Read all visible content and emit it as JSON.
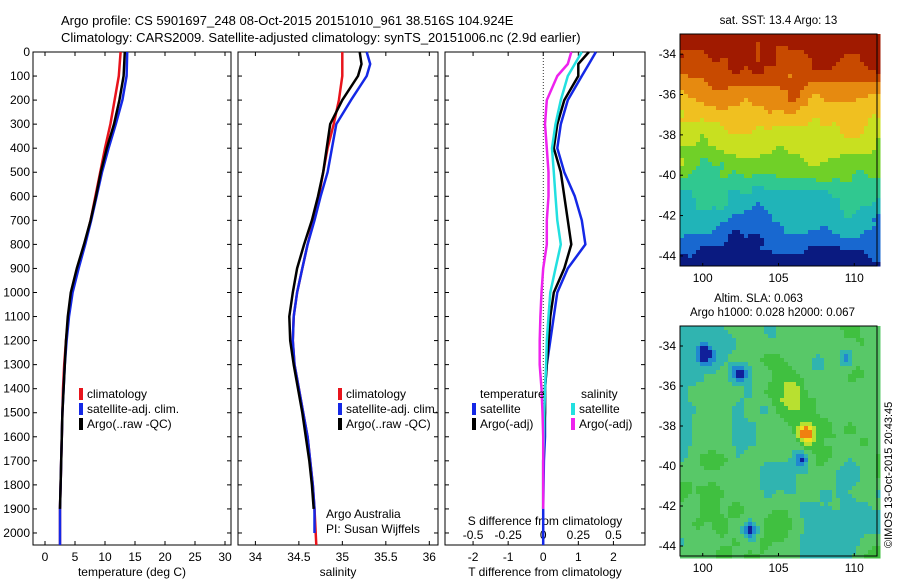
{
  "title": {
    "line1": "Argo profile: CS 5901697_248 08-Oct-2015 20151010_961 38.516S 104.924E",
    "line2": "Climatology: CARS2009. Satellite-adjusted climatology: synTS_20151006.nc (2.9d earlier)"
  },
  "colors": {
    "climatology": "#e8141c",
    "satellite": "#1428e6",
    "argo": "#000000",
    "sat_cyan": "#22e0e0",
    "argo_magenta": "#ee22ee"
  },
  "chart_data": [
    {
      "type": "line",
      "name": "temperature",
      "xlabel": "temperature (deg C)",
      "ylabel": "",
      "xlim": [
        -2,
        31
      ],
      "ylim": [
        2050,
        0
      ],
      "xticks": [
        0,
        5,
        10,
        15,
        20,
        25,
        30
      ],
      "yticks": [
        0,
        100,
        200,
        300,
        400,
        500,
        600,
        700,
        800,
        900,
        1000,
        1100,
        1200,
        1300,
        1400,
        1500,
        1600,
        1700,
        1800,
        1900,
        2000
      ],
      "legend": [
        "climatology",
        "satellite-adj. clim.",
        "Argo(..raw -QC)"
      ],
      "series": [
        {
          "name": "climatology",
          "color": "#e8141c",
          "x": [
            12.6,
            12.3,
            11.6,
            10.9,
            10.0,
            9.2,
            8.4,
            7.6,
            6.6,
            5.5,
            4.5,
            3.9,
            3.5,
            3.2,
            3.0,
            2.9,
            2.8,
            2.7,
            2.6,
            2.5,
            2.5
          ],
          "y": [
            0,
            100,
            200,
            300,
            400,
            500,
            600,
            700,
            800,
            900,
            1000,
            1100,
            1200,
            1300,
            1400,
            1500,
            1600,
            1700,
            1800,
            1900,
            2050
          ]
        },
        {
          "name": "satellite-adj. clim.",
          "color": "#1428e6",
          "x": [
            13.7,
            13.6,
            12.9,
            11.8,
            10.6,
            9.5,
            8.6,
            7.7,
            6.7,
            5.6,
            4.6,
            4.0,
            3.6,
            3.3,
            3.1,
            2.9,
            2.8,
            2.7,
            2.6,
            2.5,
            2.5
          ],
          "y": [
            0,
            100,
            200,
            300,
            400,
            500,
            600,
            700,
            800,
            900,
            1000,
            1100,
            1200,
            1300,
            1400,
            1500,
            1600,
            1700,
            1800,
            1900,
            2050
          ]
        },
        {
          "name": "Argo(..raw -QC)",
          "color": "#000000",
          "x": [
            13.3,
            13.1,
            12.4,
            11.5,
            10.3,
            9.3,
            8.5,
            7.6,
            6.5,
            5.3,
            4.3,
            3.8,
            3.5,
            3.3,
            3.1,
            2.9,
            2.8,
            2.7,
            2.6,
            2.5
          ],
          "y": [
            0,
            100,
            200,
            300,
            400,
            500,
            600,
            700,
            800,
            900,
            1000,
            1100,
            1200,
            1300,
            1400,
            1500,
            1600,
            1700,
            1800,
            1900
          ]
        }
      ]
    },
    {
      "type": "line",
      "name": "salinity",
      "xlabel": "salinity",
      "ylabel": "",
      "xlim": [
        33.8,
        36.1
      ],
      "ylim": [
        2050,
        0
      ],
      "xticks": [
        34,
        34.5,
        35,
        35.5,
        36
      ],
      "yticks": [
        0,
        100,
        200,
        300,
        400,
        500,
        600,
        700,
        800,
        900,
        1000,
        1100,
        1200,
        1300,
        1400,
        1500,
        1600,
        1700,
        1800,
        1900,
        2000
      ],
      "legend": [
        "climatology",
        "satellite-adj. clim.",
        "Argo(..raw -QC)"
      ],
      "annotation": [
        "Argo Australia",
        "PI: Susan Wijffels"
      ],
      "series": [
        {
          "name": "climatology",
          "color": "#e8141c",
          "x": [
            35.0,
            35.0,
            34.96,
            34.9,
            34.83,
            34.78,
            34.73,
            34.67,
            34.6,
            34.54,
            34.48,
            34.44,
            34.43,
            34.45,
            34.5,
            34.55,
            34.6,
            34.63,
            34.66,
            34.68,
            34.7
          ],
          "y": [
            0,
            100,
            200,
            300,
            400,
            500,
            600,
            700,
            800,
            900,
            1000,
            1100,
            1200,
            1300,
            1400,
            1500,
            1600,
            1700,
            1800,
            1900,
            2050
          ]
        },
        {
          "name": "satellite-adj. clim.",
          "color": "#1428e6",
          "x": [
            35.28,
            35.32,
            35.28,
            35.1,
            34.93,
            34.83,
            34.75,
            34.68,
            34.6,
            34.54,
            34.48,
            34.44,
            34.43,
            34.45,
            34.5,
            34.55,
            34.6,
            34.63,
            34.66,
            34.68,
            34.68
          ],
          "y": [
            0,
            50,
            100,
            200,
            300,
            500,
            600,
            700,
            800,
            900,
            1000,
            1100,
            1200,
            1300,
            1400,
            1500,
            1600,
            1700,
            1800,
            1900,
            2000
          ]
        },
        {
          "name": "Argo(..raw -QC)",
          "color": "#000000",
          "x": [
            35.2,
            35.22,
            35.18,
            35.0,
            34.86,
            34.78,
            34.72,
            34.65,
            34.56,
            34.48,
            34.43,
            34.39,
            34.4,
            34.44,
            34.49,
            34.54,
            34.58,
            34.62,
            34.65,
            34.67
          ],
          "y": [
            0,
            50,
            100,
            200,
            300,
            500,
            600,
            700,
            800,
            900,
            1000,
            1100,
            1200,
            1300,
            1400,
            1500,
            1600,
            1700,
            1800,
            1900
          ]
        }
      ]
    },
    {
      "type": "line",
      "name": "difference",
      "xlabel": "T difference from climatology",
      "top_axis_label": "S difference from climatology",
      "xlim": [
        -2.8,
        2.9
      ],
      "ylim": [
        2050,
        0
      ],
      "xticks": [
        -2,
        -1,
        0,
        1,
        2
      ],
      "top_ticks": [
        "-0.5",
        "-0.25",
        "0",
        "0.25",
        "0.5"
      ],
      "top_tick_positions": [
        -2,
        -1,
        0,
        1,
        2
      ],
      "yticks": [
        0,
        100,
        200,
        300,
        400,
        500,
        600,
        700,
        800,
        900,
        1000,
        1100,
        1200,
        1300,
        1400,
        1500,
        1600,
        1700,
        1800,
        1900,
        2000
      ],
      "legend_headers": [
        "temperature",
        "salinity"
      ],
      "legend": [
        "satellite",
        "Argo(-adj)",
        "satellite",
        "Argo(-adj)"
      ],
      "series": [
        {
          "name": "temperature satellite",
          "color": "#1428e6",
          "x": [
            1.5,
            1.3,
            1.1,
            0.7,
            0.5,
            0.4,
            0.6,
            0.9,
            1.1,
            1.2,
            0.7,
            0.4,
            0.3,
            0.2,
            0.1,
            0.05,
            0.05,
            0.05,
            0.02,
            0.0,
            0.0
          ],
          "y": [
            0,
            50,
            100,
            200,
            300,
            400,
            500,
            600,
            700,
            800,
            900,
            1000,
            1100,
            1200,
            1300,
            1400,
            1500,
            1600,
            1700,
            1900,
            2050
          ]
        },
        {
          "name": "temperature Argo(-adj)",
          "color": "#000000",
          "x": [
            1.3,
            1.0,
            1.0,
            0.6,
            0.4,
            0.3,
            0.5,
            0.6,
            0.7,
            0.8,
            0.6,
            0.3,
            0.2,
            0.15,
            0.1,
            0.05,
            0.05,
            0.02,
            0.0,
            0.0
          ],
          "y": [
            0,
            50,
            100,
            200,
            300,
            400,
            500,
            600,
            700,
            800,
            900,
            1000,
            1100,
            1200,
            1300,
            1400,
            1500,
            1600,
            1700,
            1900
          ]
        },
        {
          "name": "salinity satellite",
          "color": "#22e0e0",
          "x": [
            1.1,
            0.9,
            0.7,
            0.5,
            0.35,
            0.25,
            0.3,
            0.35,
            0.4,
            0.5,
            0.35,
            0.2,
            0.15,
            0.1,
            0.08,
            0.05,
            0.03,
            0.02,
            0.0,
            0.0
          ],
          "y": [
            0,
            50,
            100,
            200,
            300,
            400,
            500,
            600,
            700,
            800,
            900,
            1000,
            1100,
            1200,
            1300,
            1400,
            1500,
            1600,
            1700,
            1900
          ]
        },
        {
          "name": "salinity Argo(-adj)",
          "color": "#ee22ee",
          "x": [
            0.8,
            0.7,
            0.4,
            0.1,
            0.05,
            0.1,
            0.15,
            0.15,
            0.1,
            0.1,
            0.0,
            -0.05,
            -0.08,
            -0.1,
            -0.1,
            -0.05,
            -0.02,
            0.0,
            0.0,
            0.0
          ],
          "y": [
            0,
            50,
            100,
            200,
            300,
            400,
            500,
            600,
            700,
            800,
            900,
            1000,
            1100,
            1200,
            1300,
            1400,
            1500,
            1600,
            1700,
            1900
          ]
        }
      ]
    },
    {
      "type": "heatmap",
      "name": "sst_map",
      "title": "sat. SST: 13.4  Argo: 13",
      "xlim": [
        98.5,
        111.5
      ],
      "ylim": [
        -44.5,
        -33
      ],
      "xticks": [
        100,
        105,
        110
      ],
      "yticks": [
        -34,
        -36,
        -38,
        -40,
        -42,
        -44
      ],
      "colors": [
        "#a01a00",
        "#c84a00",
        "#e68a10",
        "#f0c020",
        "#c8e020",
        "#70d028",
        "#30c890",
        "#20b4b8",
        "#1868d0",
        "#0a1a80"
      ]
    },
    {
      "type": "heatmap",
      "name": "sla_map",
      "title": "Altim. SLA: 0.063",
      "subtitle": "Argo h1000: 0.028  h2000: 0.067",
      "xlim": [
        98.5,
        111.5
      ],
      "ylim": [
        -44.5,
        -33
      ],
      "xticks": [
        100,
        105,
        110
      ],
      "yticks": [
        -34,
        -36,
        -38,
        -40,
        -42,
        -44
      ],
      "colors": [
        "#10209a",
        "#2088d0",
        "#30b4b0",
        "#58c868",
        "#40c040",
        "#b8e030",
        "#f0e020",
        "#f08010"
      ]
    }
  ],
  "credit": "©IMOS 13-Oct-2015 20:43:45"
}
